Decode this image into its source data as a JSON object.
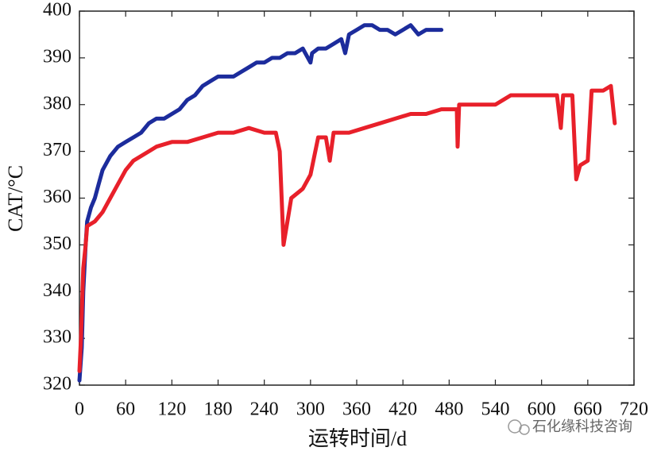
{
  "chart_data": {
    "type": "line",
    "x_label": "运转时间/d",
    "y_label": "CAT/°C",
    "watermark": "石化缘科技咨询",
    "xlim": [
      0,
      720
    ],
    "xticks": [
      0,
      60,
      120,
      180,
      240,
      300,
      360,
      420,
      480,
      540,
      600,
      660,
      720
    ],
    "ylim": [
      320,
      400
    ],
    "yticks": [
      320,
      330,
      340,
      350,
      360,
      370,
      380,
      390,
      400
    ],
    "series": [
      {
        "color": "#1c2c9c",
        "x": [
          0,
          3,
          5,
          8,
          10,
          15,
          20,
          25,
          30,
          40,
          50,
          60,
          70,
          80,
          90,
          100,
          110,
          120,
          130,
          140,
          150,
          160,
          170,
          180,
          190,
          200,
          210,
          220,
          230,
          240,
          250,
          260,
          270,
          280,
          290,
          300,
          302,
          310,
          320,
          330,
          340,
          345,
          350,
          360,
          370,
          380,
          390,
          400,
          410,
          420,
          430,
          440,
          450,
          460,
          470
        ],
        "values": [
          321,
          328,
          340,
          350,
          355,
          358,
          360,
          363,
          366,
          369,
          371,
          372,
          373,
          374,
          376,
          377,
          377,
          378,
          379,
          381,
          382,
          384,
          385,
          386,
          386,
          386,
          387,
          388,
          389,
          389,
          390,
          390,
          391,
          391,
          392,
          389,
          391,
          392,
          392,
          393,
          394,
          391,
          395,
          396,
          397,
          397,
          396,
          396,
          395,
          396,
          397,
          395,
          396,
          396,
          396
        ]
      },
      {
        "color": "#e8202a",
        "x": [
          0,
          2,
          5,
          8,
          10,
          20,
          30,
          40,
          50,
          60,
          70,
          80,
          90,
          100,
          120,
          140,
          160,
          180,
          200,
          220,
          240,
          255,
          260,
          265,
          270,
          275,
          290,
          300,
          310,
          320,
          325,
          330,
          350,
          370,
          390,
          410,
          430,
          450,
          470,
          480,
          490,
          491,
          493,
          520,
          540,
          560,
          580,
          600,
          620,
          625,
          628,
          640,
          645,
          650,
          660,
          665,
          680,
          690,
          695
        ],
        "values": [
          323,
          330,
          345,
          350,
          354,
          355,
          357,
          360,
          363,
          366,
          368,
          369,
          370,
          371,
          372,
          372,
          373,
          374,
          374,
          375,
          374,
          374,
          370,
          350,
          355,
          360,
          362,
          365,
          373,
          373,
          368,
          374,
          374,
          375,
          376,
          377,
          378,
          378,
          379,
          379,
          379,
          371,
          380,
          380,
          380,
          382,
          382,
          382,
          382,
          375,
          382,
          382,
          364,
          367,
          368,
          383,
          383,
          384,
          376
        ]
      }
    ]
  }
}
